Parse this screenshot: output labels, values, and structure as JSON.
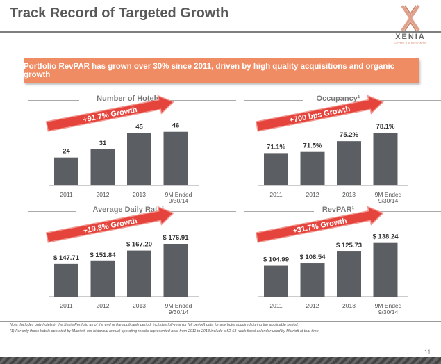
{
  "title": "Track Record of Targeted Growth",
  "logo": {
    "brand": "XENIA",
    "sub": "HOTELS & RESORTS"
  },
  "banner": "Portfolio RevPAR has grown over 30% since 2011, driven by high quality acquisitions and organic growth",
  "notes": [
    "Note: Includes only hotels in the Xenia Portfolio as of the end of the applicable period. Includes full-year (or full period) data for any hotel acquired during the applicable period.",
    "(1)   For only those hotels operated by Marriott, our historical annual operating results represented here from 2011 to 2013 include a 52-53 week fiscal calendar used by Marriott at that time."
  ],
  "page_number": "11",
  "colors": {
    "bar": "#5b5f63",
    "accent": "#f08c64",
    "arrow": "#e5443c",
    "arrow_border": "#f19a93"
  },
  "chart_data": [
    {
      "type": "bar",
      "title": "Number of Hotels",
      "growth": "+91.7% Growth",
      "categories": [
        "2011",
        "2012",
        "2013",
        "9M Ended\n9/30/14"
      ],
      "values": [
        24,
        31,
        45,
        46
      ],
      "labels": [
        "24",
        "31",
        "45",
        "46"
      ]
    },
    {
      "type": "bar",
      "title": "Occupancy¹",
      "growth": "+700 bps Growth",
      "categories": [
        "2011",
        "2012",
        "2013",
        "9M Ended\n9/30/14"
      ],
      "values": [
        71.1,
        71.5,
        75.2,
        78.1
      ],
      "labels": [
        "71.1%",
        "71.5%",
        "75.2%",
        "78.1%"
      ]
    },
    {
      "type": "bar",
      "title": "Average Daily Rate¹",
      "growth": "+19.8% Growth",
      "categories": [
        "2011",
        "2012",
        "2013",
        "9M Ended\n9/30/14"
      ],
      "values": [
        147.71,
        151.84,
        167.2,
        176.91
      ],
      "labels": [
        "$ 147.71",
        "$ 151.84",
        "$ 167.20",
        "$ 176.91"
      ]
    },
    {
      "type": "bar",
      "title": "RevPAR¹",
      "growth": "+31.7% Growth",
      "categories": [
        "2011",
        "2012",
        "2013",
        "9M Ended\n9/30/14"
      ],
      "values": [
        104.99,
        108.54,
        125.73,
        138.24
      ],
      "labels": [
        "$ 104.99",
        "$ 108.54",
        "$ 125.73",
        "$ 138.24"
      ]
    }
  ]
}
